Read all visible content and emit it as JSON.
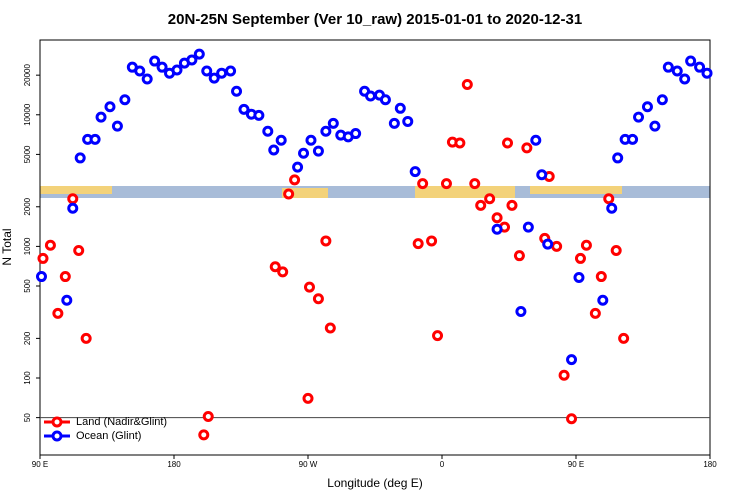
{
  "chart_data": {
    "type": "scatter",
    "title": "20N-25N September (Ver 10_raw)   2015-01-01 to 2020-12-31",
    "x_label": "Longitude (deg E)",
    "y_label": "N Total",
    "log_y": true,
    "legend": "lower left",
    "hline": 50,
    "xlim": [
      90,
      540
    ],
    "xticks": [
      {
        "value": 90,
        "label": "90 E"
      },
      180,
      {
        "value": 270,
        "label": "90 W"
      },
      {
        "value": 360,
        "label": "0"
      },
      {
        "value": 450,
        "label": "90 E"
      },
      {
        "value": 540,
        "label": "180"
      }
    ],
    "ylim": [
      26,
      37000
    ],
    "yticks": [
      50,
      100,
      200,
      500,
      1000,
      2000,
      5000,
      10000,
      20000
    ],
    "series": [
      {
        "name": "Land (Nadir&Glint)",
        "color": "#ff0000",
        "x": [
          92,
          97,
          102,
          107,
          112,
          116,
          121,
          200,
          203,
          248,
          253,
          257,
          261,
          270,
          271,
          277,
          282,
          285,
          344,
          347,
          353,
          357,
          363,
          367,
          372,
          377,
          382,
          386,
          392,
          397,
          402,
          404,
          407,
          412,
          417,
          429,
          432,
          437,
          442,
          447,
          453,
          457,
          463,
          467,
          472,
          477,
          482
        ],
        "values": [
          810,
          1020,
          310,
          590,
          2300,
          930,
          200,
          37,
          51,
          700,
          640,
          2500,
          3200,
          70,
          490,
          400,
          1100,
          240,
          1050,
          3000,
          1100,
          210,
          3000,
          6200,
          6100,
          17000,
          3000,
          2050,
          2300,
          1650,
          1400,
          6100,
          2050,
          850,
          5600,
          1150,
          3400,
          1000,
          105,
          49,
          810,
          1020,
          310,
          590,
          2300,
          930,
          200
        ]
      },
      {
        "name": "Ocean (Glint)",
        "color": "#0000ff",
        "x": [
          91,
          108,
          112,
          117,
          122,
          127,
          131,
          137,
          142,
          147,
          152,
          157,
          162,
          167,
          172,
          177,
          182,
          187,
          192,
          197,
          202,
          207,
          212,
          218,
          222,
          227,
          232,
          237,
          243,
          247,
          252,
          263,
          267,
          272,
          277,
          282,
          287,
          292,
          297,
          302,
          308,
          312,
          318,
          322,
          328,
          332,
          337,
          342,
          397,
          413,
          418,
          423,
          427,
          431,
          447,
          452,
          468,
          474,
          478,
          483,
          488,
          492,
          498,
          503,
          508,
          512,
          518,
          523,
          527,
          533,
          538
        ],
        "values": [
          590,
          390,
          1950,
          4700,
          6500,
          6500,
          9600,
          11500,
          8200,
          13000,
          23000,
          21500,
          18700,
          25600,
          23000,
          20700,
          21900,
          24700,
          26100,
          28900,
          21500,
          19000,
          20700,
          21500,
          15100,
          11000,
          10100,
          9900,
          7500,
          5400,
          6400,
          4000,
          5100,
          6400,
          5300,
          7500,
          8600,
          7000,
          6800,
          7200,
          15100,
          13900,
          14100,
          13000,
          8600,
          11200,
          8900,
          3700,
          1350,
          320,
          1400,
          6400,
          3500,
          1040,
          138,
          580,
          390,
          1950,
          4700,
          6500,
          6500,
          9600,
          11500,
          8200,
          13000,
          23000,
          21500,
          18700,
          25600,
          23000,
          20700
        ]
      }
    ]
  }
}
